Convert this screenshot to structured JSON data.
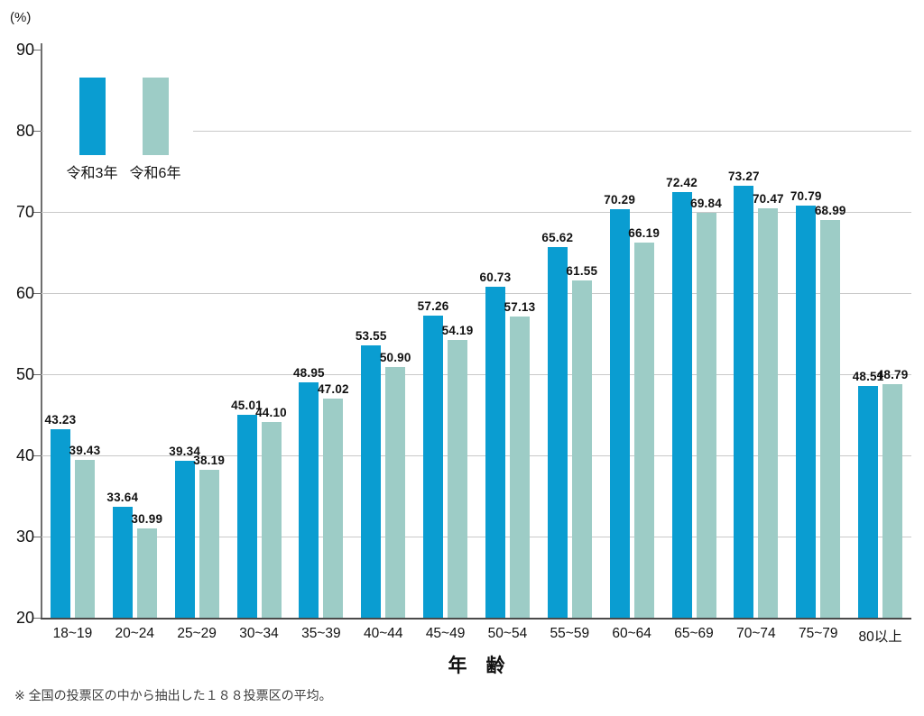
{
  "unit_label": "(%)",
  "x_axis_title": "年　齢",
  "footnote": "※ 全国の投票区の中から抽出した１８８投票区の平均。",
  "legend": {
    "series1_label": "令和3年",
    "series2_label": "令和6年"
  },
  "colors": {
    "series1": "#0a9dd1",
    "series2": "#9dccc6",
    "gridline": "#c9c9c9",
    "axis": "#6e6e6e"
  },
  "chart_data": {
    "type": "bar",
    "title": "",
    "xlabel": "年　齢",
    "ylabel": "(%)",
    "ylim": [
      20,
      90
    ],
    "yticks": [
      20,
      30,
      40,
      50,
      60,
      70,
      80,
      90
    ],
    "grid": true,
    "legend_position": "top-left",
    "categories": [
      "18~19",
      "20~24",
      "25~29",
      "30~34",
      "35~39",
      "40~44",
      "45~49",
      "50~54",
      "55~59",
      "60~64",
      "65~69",
      "70~74",
      "75~79",
      "80以上"
    ],
    "series": [
      {
        "name": "令和3年",
        "color": "#0a9dd1",
        "values": [
          43.23,
          33.64,
          39.34,
          45.01,
          48.95,
          53.55,
          57.26,
          60.73,
          65.62,
          70.29,
          72.42,
          73.27,
          70.79,
          48.51
        ]
      },
      {
        "name": "令和6年",
        "color": "#9dccc6",
        "values": [
          39.43,
          30.99,
          38.19,
          44.1,
          47.02,
          50.9,
          54.19,
          57.13,
          61.55,
          66.19,
          69.84,
          70.47,
          68.99,
          48.79
        ]
      }
    ]
  }
}
